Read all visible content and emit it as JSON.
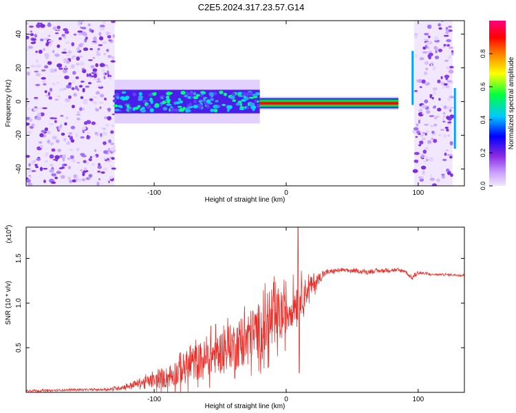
{
  "title": "C2E5.2024.317.23.57.G14",
  "chart_data": [
    {
      "type": "heatmap",
      "name": "spectrogram",
      "xlabel": "Height of straight line (km)",
      "ylabel": "Frequency (Hz)",
      "xlim": [
        -197,
        135
      ],
      "ylim": [
        -50,
        48
      ],
      "x_ticks": [
        -100,
        0,
        100
      ],
      "x_tick_labels": [
        "-100",
        "0",
        "100"
      ],
      "y_ticks": [
        -40,
        -20,
        0,
        20,
        40
      ],
      "y_tick_labels": [
        "-40",
        "-20",
        "0",
        "20",
        "40"
      ],
      "colorbar": {
        "label": "Normalized spectral amplitude",
        "range": [
          0,
          1
        ],
        "ticks": [
          0.0,
          0.2,
          0.4,
          0.6,
          0.8
        ],
        "tick_labels": [
          "0.0",
          "0.2",
          "0.4",
          "0.6",
          "0.8"
        ],
        "colormap": [
          "#f2e6ff",
          "#9b30ff",
          "#0000ff",
          "#00d8ff",
          "#00ff40",
          "#ffff00",
          "#ff8000",
          "#ff0000",
          "#ff0080"
        ]
      },
      "regions": [
        {
          "name": "noise-left",
          "x_range": [
            -197,
            -130
          ],
          "frequency_range": [
            -50,
            48
          ],
          "level": "low"
        },
        {
          "name": "signal-band-early",
          "x_range": [
            -130,
            -20
          ],
          "center_frequency": 0,
          "bandwidth": 10,
          "level": "medium"
        },
        {
          "name": "signal-band-peak",
          "x_range": [
            -20,
            85
          ],
          "center_frequency": -1,
          "bandwidth": 3,
          "level": "high"
        },
        {
          "name": "noise-right",
          "x_range": [
            97,
            126
          ],
          "frequency_range": [
            -50,
            48
          ],
          "level": "low"
        }
      ]
    },
    {
      "type": "line",
      "name": "snr",
      "xlabel": "Height of straight line (km)",
      "ylabel": "SNR (10 * v/v)",
      "y_multiplier_label": "(x10",
      "y_multiplier_exp": "4",
      "y_multiplier_close": ")",
      "xlim": [
        -197,
        135
      ],
      "ylim": [
        0,
        1.85
      ],
      "x_ticks": [
        -100,
        0,
        100
      ],
      "x_tick_labels": [
        "-100",
        "0",
        "100"
      ],
      "y_ticks": [
        0.5,
        1.0,
        1.5
      ],
      "y_tick_labels": [
        "0.5",
        "1.0",
        "1.5"
      ],
      "color": "#e8302a",
      "series": [
        {
          "name": "SNR",
          "x": [
            -197,
            -180,
            -160,
            -140,
            -130,
            -120,
            -110,
            -100,
            -90,
            -80,
            -70,
            -60,
            -50,
            -40,
            -30,
            -20,
            -10,
            0,
            5,
            10,
            15,
            20,
            25,
            30,
            40,
            50,
            60,
            70,
            80,
            90,
            95,
            100,
            110,
            120,
            135
          ],
          "y": [
            0.02,
            0.02,
            0.03,
            0.03,
            0.04,
            0.07,
            0.11,
            0.13,
            0.17,
            0.25,
            0.33,
            0.38,
            0.46,
            0.53,
            0.6,
            0.7,
            0.78,
            0.88,
            0.98,
            1.05,
            1.13,
            1.2,
            1.28,
            1.34,
            1.37,
            1.36,
            1.35,
            1.36,
            1.37,
            1.36,
            1.28,
            1.34,
            1.32,
            1.32,
            1.31
          ],
          "fluctuation": [
            0.01,
            0.01,
            0.01,
            0.01,
            0.02,
            0.03,
            0.05,
            0.08,
            0.12,
            0.17,
            0.2,
            0.22,
            0.23,
            0.25,
            0.3,
            0.31,
            0.33,
            0.25,
            0.22,
            0.2,
            0.15,
            0.1,
            0.06,
            0.03,
            0.02,
            0.02,
            0.02,
            0.02,
            0.02,
            0.02,
            0.02,
            0.02,
            0.01,
            0.01,
            0.01
          ],
          "annotations": [
            {
              "x": 9,
              "y": 1.85,
              "label": "peak"
            },
            {
              "x": 10,
              "y": 0.22,
              "label": "dip"
            }
          ]
        }
      ]
    }
  ]
}
